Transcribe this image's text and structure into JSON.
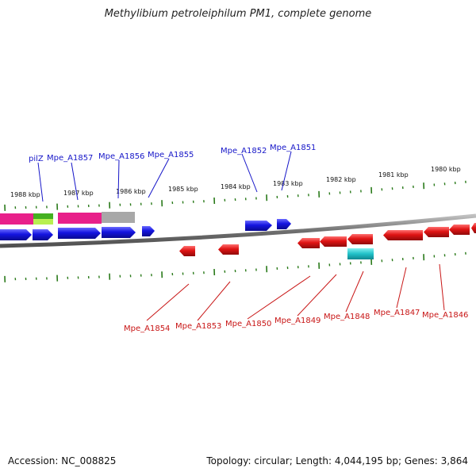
{
  "title": "Methylibium petroleiphilum PM1, complete genome",
  "footer": {
    "accession": "Accession: NC_008825",
    "topology": "Topology: circular; Length: 4,044,195 bp; Genes: 3,864"
  },
  "colors": {
    "forward_gene": "#1414e0",
    "reverse_gene": "#e01414",
    "rna_feature": "#e8208a",
    "green_feature": "#44b020",
    "lime_feature": "#b8f050",
    "grey_feature": "#a8a8a8",
    "cyan_feature": "#20c0c8",
    "ticks": "#2a7a1a",
    "backbone": "#808080"
  },
  "scale_labels": [
    "1988 kbp",
    "1987 kbp",
    "1986 kbp",
    "1985 kbp",
    "1984 kbp",
    "1983 kbp",
    "1982 kbp",
    "1981 kbp",
    "1980 kbp"
  ],
  "genes_top": [
    "pilZ",
    "Mpe_A1857",
    "Mpe_A1856",
    "Mpe_A1855",
    "Mpe_A1852",
    "Mpe_A1851"
  ],
  "genes_bottom": [
    "Mpe_A1854",
    "Mpe_A1853",
    "Mpe_A1850",
    "Mpe_A1849",
    "Mpe_A1848",
    "Mpe_A1847",
    "Mpe_A1846"
  ]
}
